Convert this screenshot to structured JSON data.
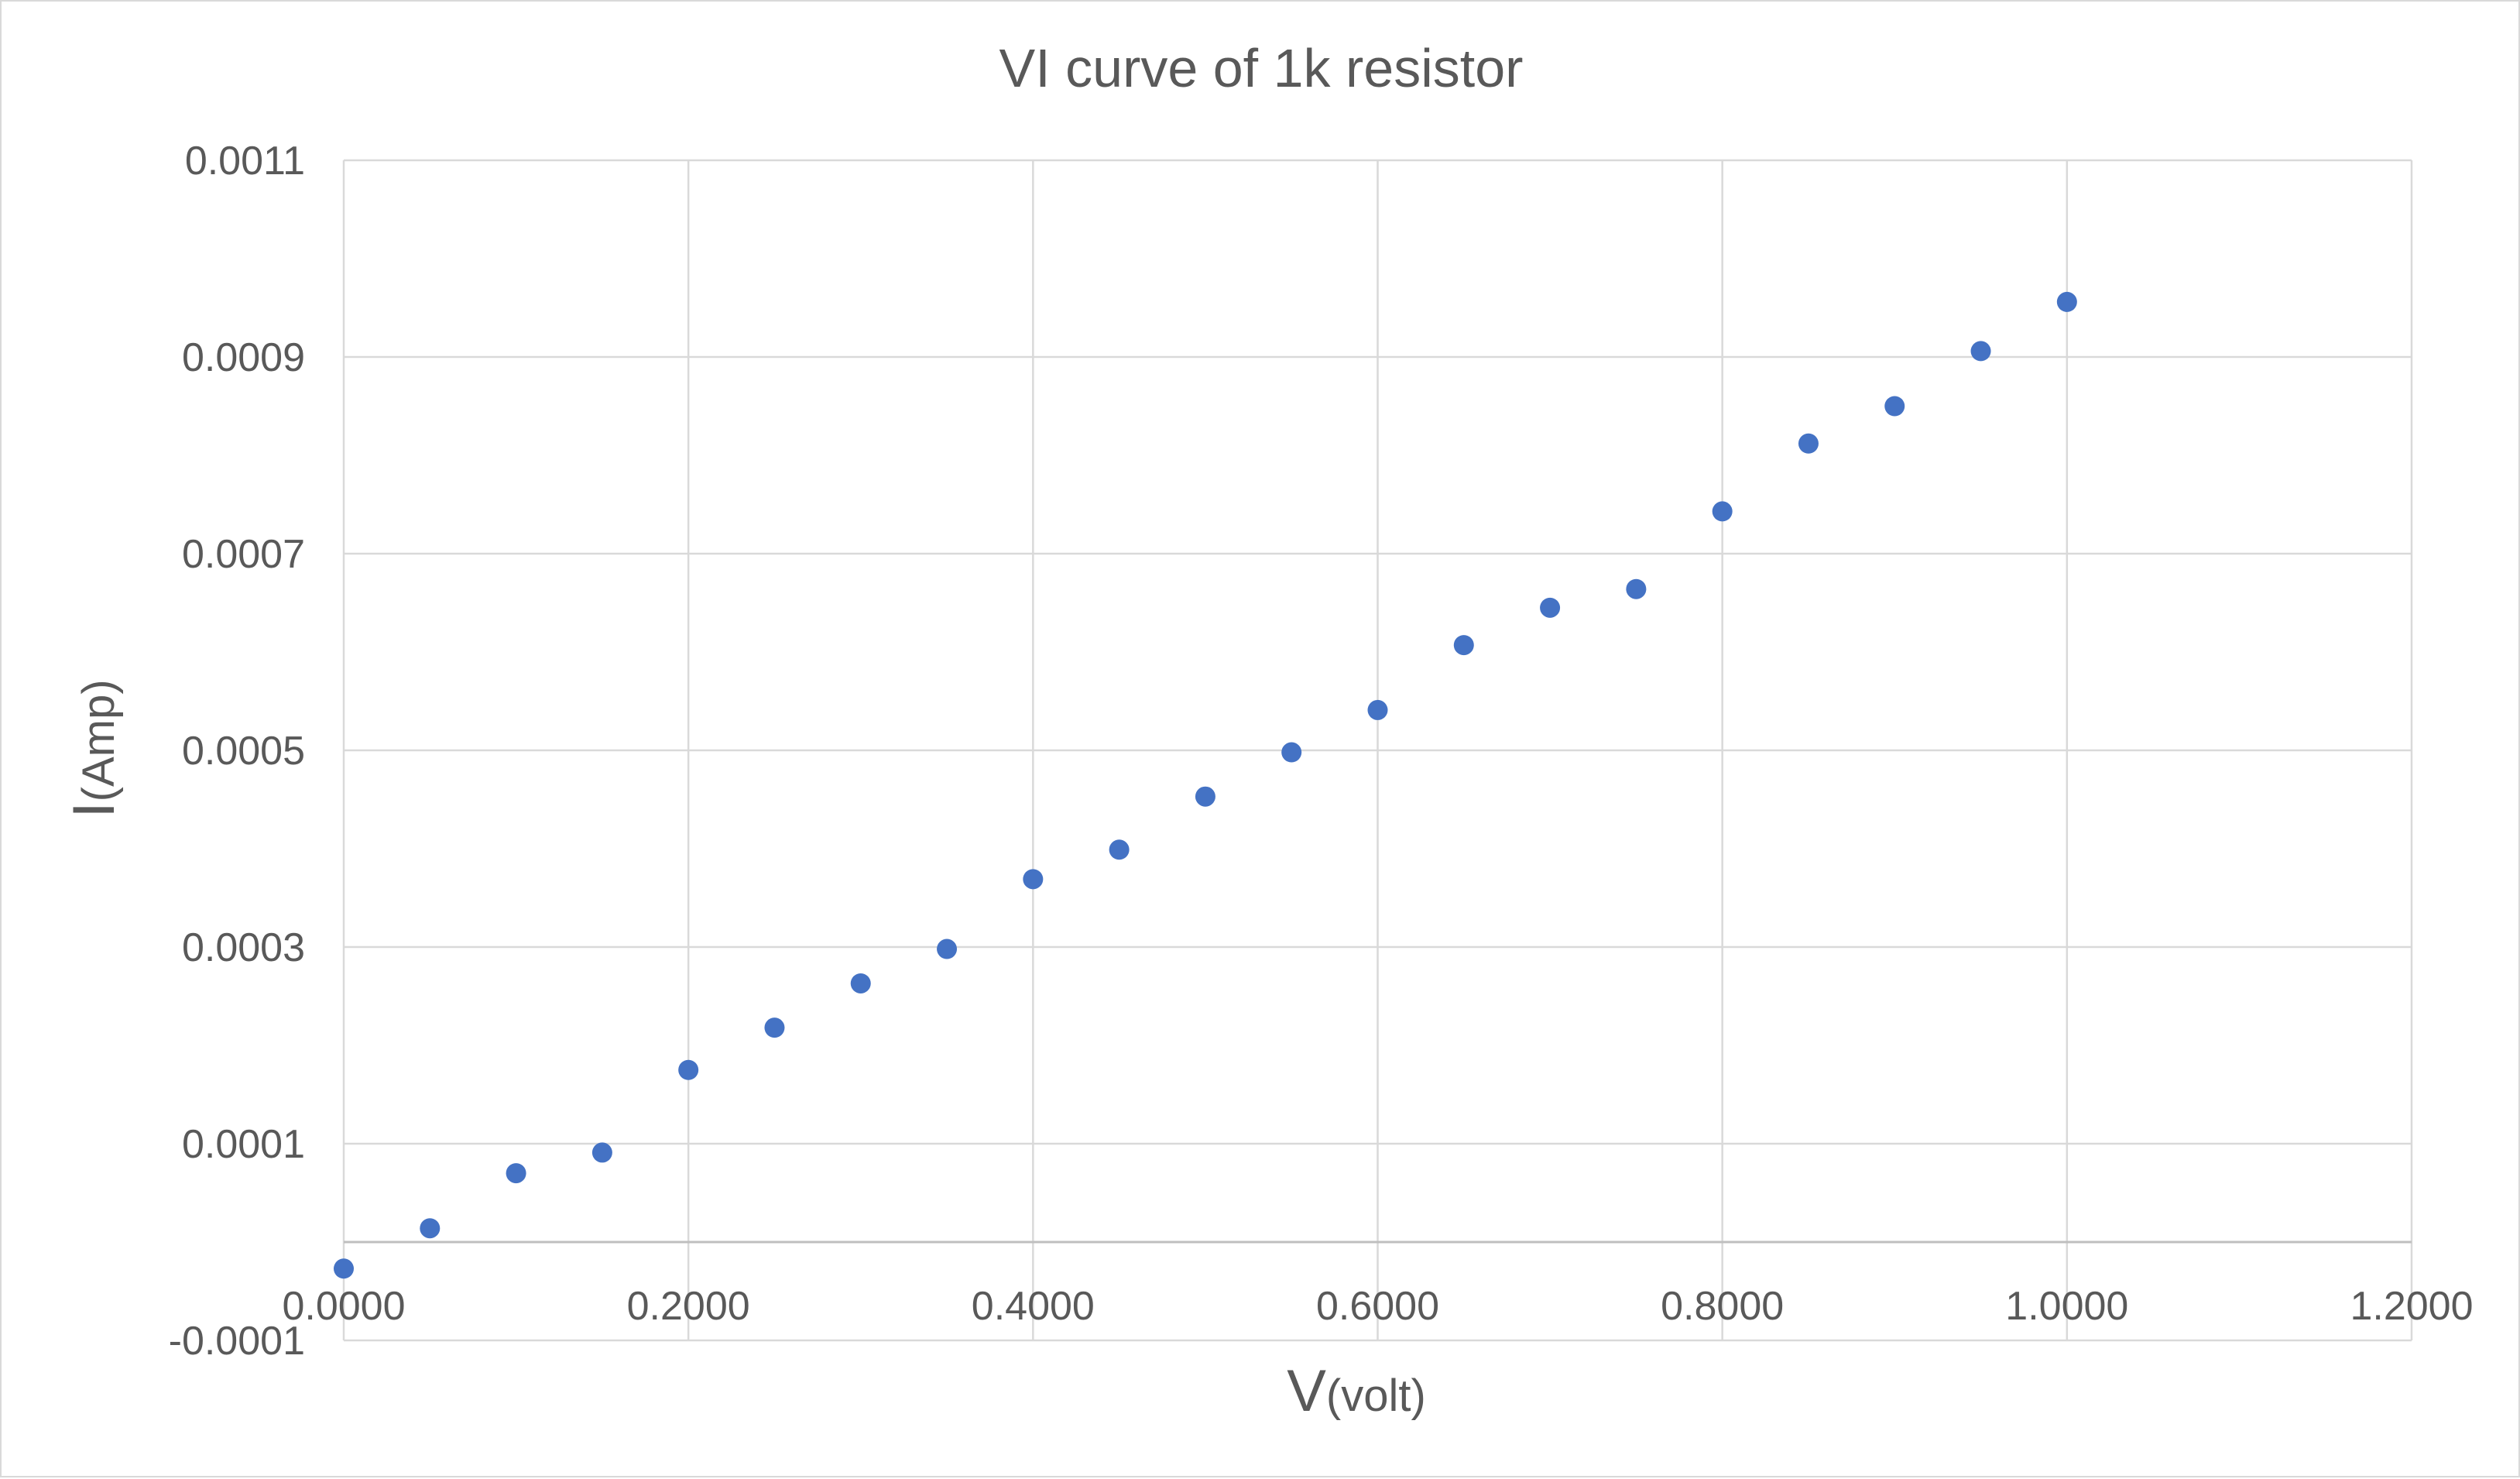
{
  "chart_data": {
    "type": "scatter",
    "title": "VI curve of 1k resistor",
    "xlabel": {
      "main": "V",
      "sub": "(volt)"
    },
    "ylabel": {
      "main": "I",
      "sub": "(Amp)"
    },
    "xlim": [
      0,
      1.2
    ],
    "ylim": [
      -0.0001,
      0.0011
    ],
    "x_ticks": [
      0,
      0.2,
      0.4,
      0.6,
      0.8,
      1.0,
      1.2
    ],
    "x_tick_labels": [
      "0.0000",
      "0.2000",
      "0.4000",
      "0.6000",
      "0.8000",
      "1.0000",
      "1.2000"
    ],
    "y_ticks": [
      -0.0001,
      0.0001,
      0.0003,
      0.0005,
      0.0007,
      0.0009,
      0.0011
    ],
    "y_tick_labels": [
      "-0.0001",
      "0.0001",
      "0.0003",
      "0.0005",
      "0.0007",
      "0.0009",
      "0.0011"
    ],
    "grid": true,
    "legend": false,
    "marker_color": "#4472c4",
    "series": [
      {
        "x": [
          0,
          0.05,
          0.1,
          0.15,
          0.2,
          0.25,
          0.3,
          0.35,
          0.4,
          0.45,
          0.5,
          0.55,
          0.6,
          0.65,
          0.7,
          0.75,
          0.8,
          0.85,
          0.9,
          0.95,
          1.0
        ],
        "y": [
          -2.7e-05,
          1.4e-05,
          7e-05,
          9.1e-05,
          0.000175,
          0.000218,
          0.000263,
          0.000298,
          0.000369,
          0.000399,
          0.000453,
          0.000498,
          0.000541,
          0.000607,
          0.000645,
          0.000664,
          0.000743,
          0.000812,
          0.00085,
          0.000906,
          0.000956
        ]
      }
    ]
  }
}
